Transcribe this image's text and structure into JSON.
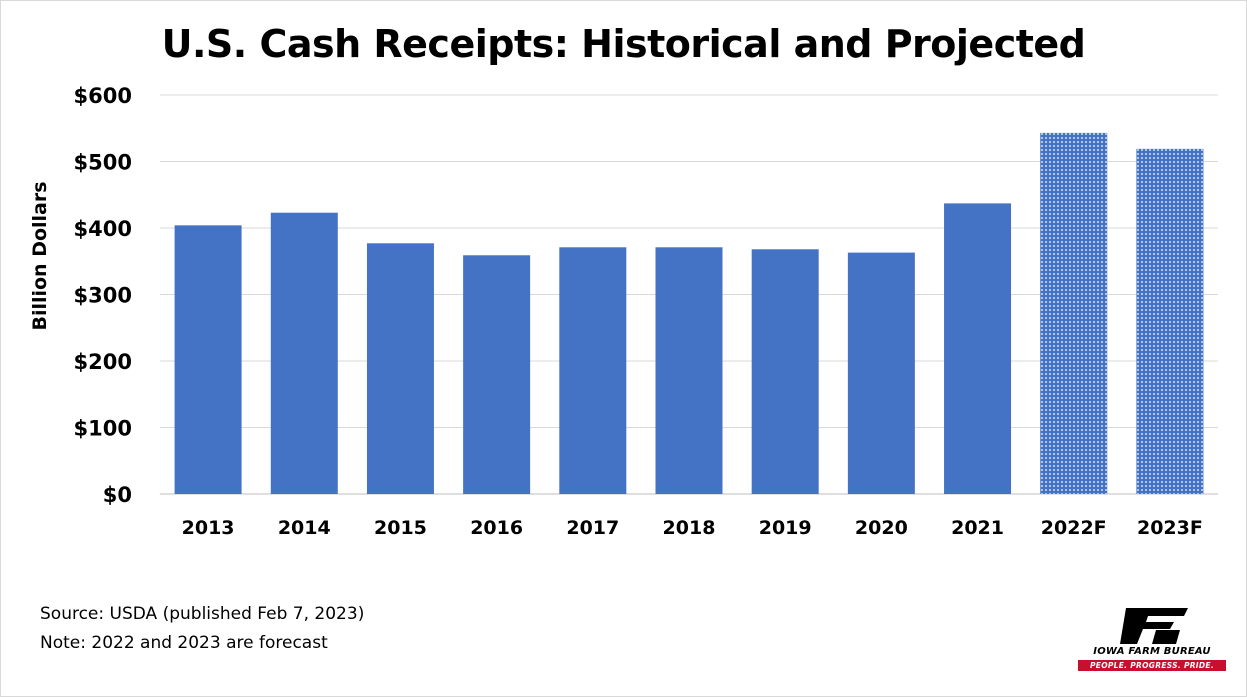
{
  "chart_data": {
    "type": "bar",
    "title": "U.S. Cash Receipts: Historical and Projected",
    "ylabel": "Billion Dollars",
    "xlabel": "",
    "categories": [
      "2013",
      "2014",
      "2015",
      "2016",
      "2017",
      "2018",
      "2019",
      "2020",
      "2021",
      "2022F",
      "2023F"
    ],
    "values": [
      404,
      423,
      377,
      359,
      371,
      371,
      368,
      363,
      437,
      543,
      519
    ],
    "forecast": [
      false,
      false,
      false,
      false,
      false,
      false,
      false,
      false,
      false,
      true,
      true
    ],
    "ylim": [
      0,
      600
    ],
    "yticks": [
      0,
      100,
      200,
      300,
      400,
      500,
      600
    ],
    "ytick_labels": [
      "$0",
      "$100",
      "$200",
      "$300",
      "$400",
      "$500",
      "$600"
    ],
    "grid": true,
    "bar_color": "#4472c4",
    "forecast_pattern": "dotted"
  },
  "notes": {
    "source": "Source: USDA (published Feb 7, 2023)",
    "note": "Note: 2022 and 2023 are forecast"
  },
  "logo": {
    "mark": "FB",
    "name": "IOWA FARM BUREAU",
    "tagline": "PEOPLE. PROGRESS. PRIDE.",
    "color": "#c8102e"
  }
}
